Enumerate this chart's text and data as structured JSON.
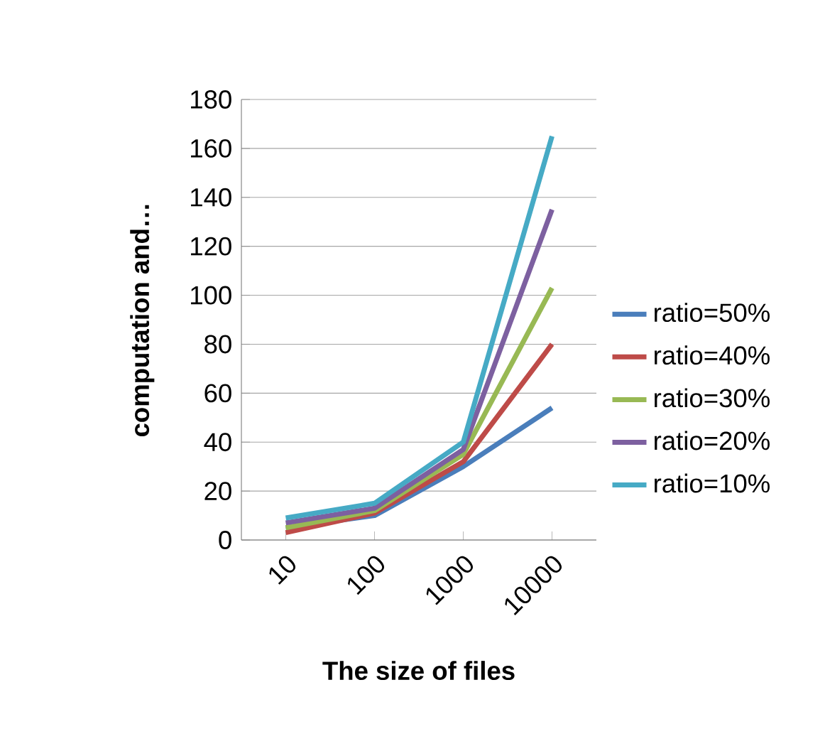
{
  "chart_data": {
    "type": "line",
    "xlabel": "The size of files",
    "ylabel": "computation and…",
    "categories": [
      "10",
      "100",
      "1000",
      "10000"
    ],
    "series": [
      {
        "name": "ratio=50%",
        "color": "#4a7ebb",
        "values": [
          5,
          10,
          30,
          54
        ]
      },
      {
        "name": "ratio=40%",
        "color": "#be4b48",
        "values": [
          3,
          11,
          32,
          80
        ]
      },
      {
        "name": "ratio=30%",
        "color": "#98b954",
        "values": [
          5,
          12,
          35,
          103
        ]
      },
      {
        "name": "ratio=20%",
        "color": "#7d60a0",
        "values": [
          7,
          13,
          37,
          135
        ]
      },
      {
        "name": "ratio=10%",
        "color": "#46aac5",
        "values": [
          9,
          15,
          40,
          165
        ]
      }
    ],
    "ylim": [
      0,
      180
    ],
    "yticks": [
      0,
      20,
      40,
      60,
      80,
      100,
      120,
      140,
      160,
      180
    ],
    "grid": "y",
    "legend": "right",
    "marker": "none",
    "line_style": "solid"
  }
}
